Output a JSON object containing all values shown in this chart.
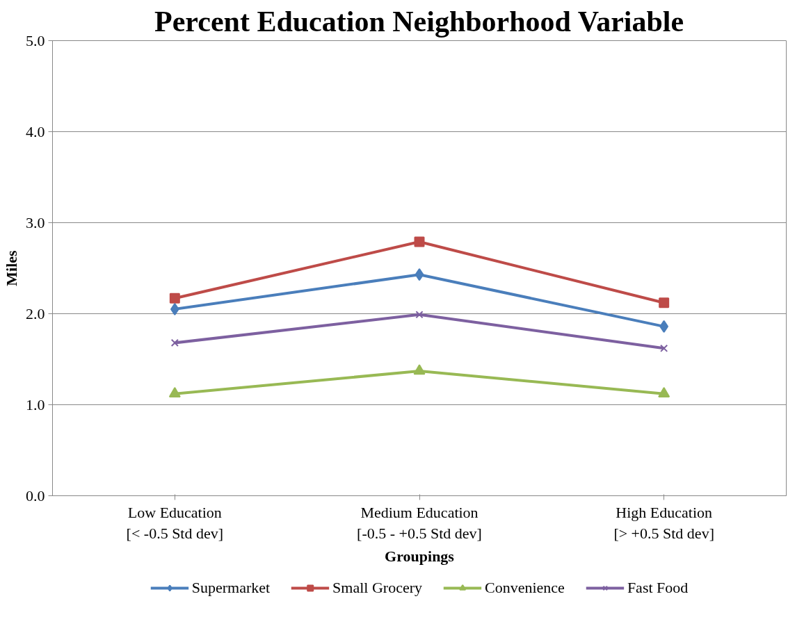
{
  "chart_data": {
    "type": "line",
    "title": "Percent Education Neighborhood Variable",
    "xlabel": "Groupings",
    "ylabel": "Miles",
    "categories": [
      "Low Education\n[< -0.5 Std dev]",
      "Medium Education\n[-0.5 - +0.5 Std dev]",
      "High Education\n[> +0.5 Std dev]"
    ],
    "series": [
      {
        "name": "Supermarket",
        "color": "#4a7ebb",
        "marker": "diamond",
        "values": [
          2.05,
          2.43,
          1.86
        ]
      },
      {
        "name": "Small Grocery",
        "color": "#be4b48",
        "marker": "square",
        "values": [
          2.17,
          2.79,
          2.12
        ]
      },
      {
        "name": "Convenience",
        "color": "#98b954",
        "marker": "triangle",
        "values": [
          1.12,
          1.37,
          1.12
        ]
      },
      {
        "name": "Fast Food",
        "color": "#7d60a0",
        "marker": "cross",
        "values": [
          1.68,
          1.99,
          1.62
        ]
      }
    ],
    "ylim": [
      0,
      5
    ],
    "yticks": [
      {
        "value": 0,
        "label": "0.0"
      },
      {
        "value": 1,
        "label": "1.0"
      },
      {
        "value": 2,
        "label": "2.0"
      },
      {
        "value": 3,
        "label": "3.0"
      },
      {
        "value": 4,
        "label": "4.0"
      },
      {
        "value": 5,
        "label": "5.0"
      }
    ],
    "grid": "y",
    "legend": "bottom",
    "line_style": "solid"
  }
}
